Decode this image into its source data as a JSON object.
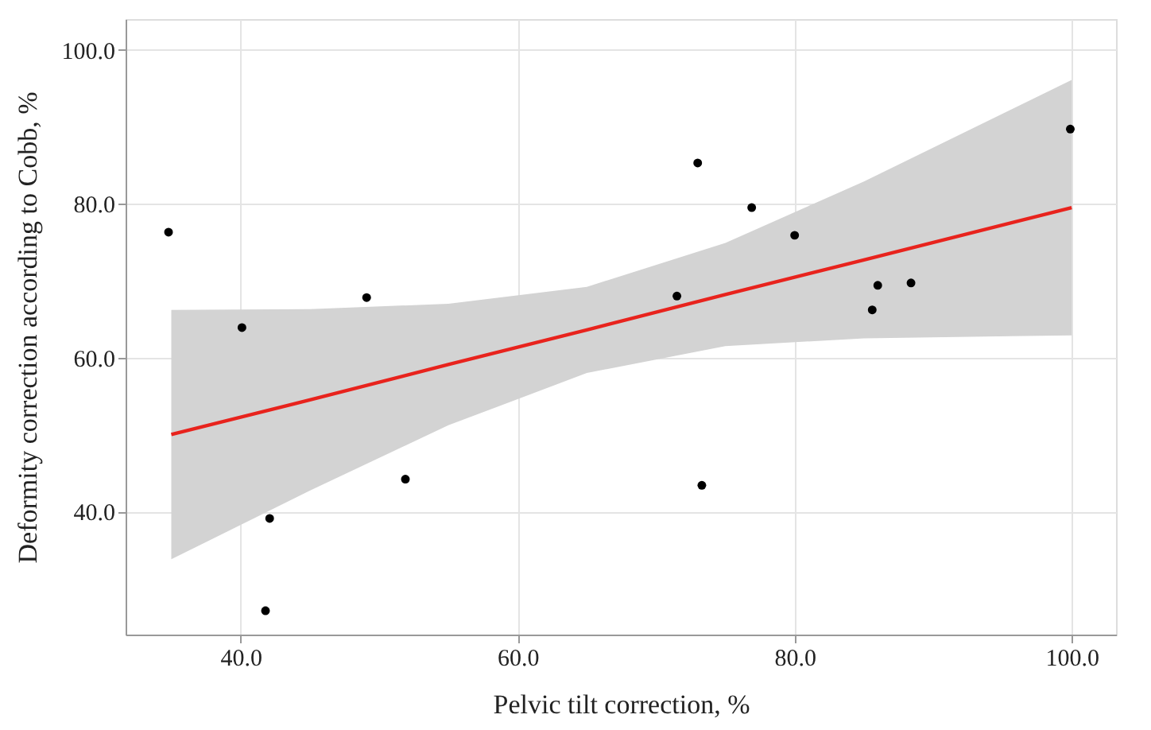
{
  "chart_data": {
    "type": "scatter",
    "xlabel": "Pelvic tilt correction, %",
    "ylabel": "Deformity correction according to Cobb, %",
    "xlim": [
      31.7,
      103.2
    ],
    "ylim": [
      24,
      104
    ],
    "xticks": [
      {
        "value": 40,
        "label": "40.0"
      },
      {
        "value": 60,
        "label": "60.0"
      },
      {
        "value": 80,
        "label": "80.0"
      },
      {
        "value": 100,
        "label": "100.0"
      }
    ],
    "yticks": [
      {
        "value": 40,
        "label": "40.0"
      },
      {
        "value": 60,
        "label": "60.0"
      },
      {
        "value": 80,
        "label": "80.0"
      },
      {
        "value": 100,
        "label": "100.0"
      }
    ],
    "grid": true,
    "series": [
      {
        "type": "line",
        "color": "#e8231d",
        "line_style": "solid",
        "marker": "none",
        "x": [
          35,
          45,
          55,
          65,
          75,
          85,
          100
        ],
        "values": [
          50.0,
          54.5,
          59.1,
          63.6,
          68.2,
          72.7,
          79.5
        ],
        "lower": [
          33.8,
          42.7,
          51.2,
          58.0,
          61.5,
          62.5,
          62.9
        ],
        "upper": [
          66.2,
          66.3,
          67.0,
          69.2,
          74.9,
          82.9,
          96.1
        ]
      },
      {
        "color": "#000000",
        "marker": "circle",
        "x": [
          34.8,
          40.1,
          42.1,
          41.8,
          49.1,
          51.9,
          71.5,
          73.0,
          73.3,
          76.9,
          80.0,
          85.6,
          86.0,
          88.4,
          99.9
        ],
        "values": [
          76.3,
          63.9,
          39.1,
          27.1,
          67.8,
          44.2,
          68.0,
          85.3,
          43.4,
          79.5,
          75.9,
          66.2,
          69.4,
          69.7,
          89.7
        ]
      }
    ]
  }
}
